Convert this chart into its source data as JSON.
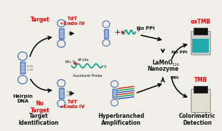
{
  "bg_color": "#f0f0e8",
  "labels": {
    "target": "Target",
    "no_target": "No\nTarget",
    "hairpin_dna": "Hairpin\nDNA",
    "tdt_endo_top": "TdT\n+Endo IV",
    "tdt_endo_bot": "TdT\n+Endo IV",
    "ap_site": "AP-site",
    "nh2": "NH₂-3'",
    "five_prime": "5'",
    "assistant_probe": "Assistant Probe",
    "no_ppi": "No PPi",
    "ppi": "PPi",
    "lamno": "LaMnO",
    "lamno_sub": "3.26",
    "nanozyme": "Nanozyme",
    "oxtmb": "oxTMB",
    "tmb": "TMB",
    "target_id": "Target\nIdentification",
    "hyperbranched": "Hyperbranched\nAmplification",
    "colorimetric": "Colorimetric\nDetection"
  },
  "colors": {
    "red": "#ee0000",
    "black": "#111111",
    "dark_gray": "#444444",
    "blue_main": "#5577bb",
    "blue_light": "#aabbdd",
    "blue_stem": "#8899cc",
    "teal": "#009988",
    "red_strand": "#cc2200",
    "blue_strand": "#2244cc",
    "green_strand": "#009944",
    "bg": "#f0f0e8",
    "vial_teal": "#22aaaa",
    "vial_dark": "#111111",
    "vial_gray": "#cccccc"
  }
}
